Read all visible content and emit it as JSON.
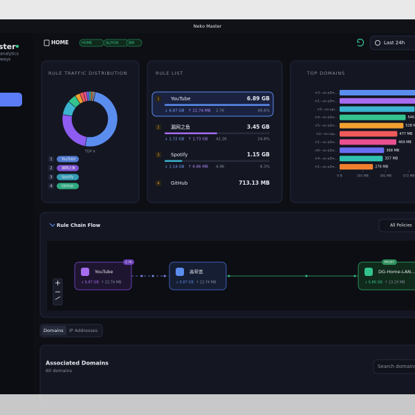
{
  "window_title": "Neko Master",
  "sidebar": {
    "brand": "ster",
    "subtitle_lines": [
      "analytics",
      "ways"
    ]
  },
  "header": {
    "backend": "HOME",
    "chips": [
      "HOME",
      "ALIYUN",
      "BW"
    ],
    "time_range": "Last 24h"
  },
  "rule_traffic": {
    "title": "RULE TRAFFIC DISTRIBUTION",
    "donut": {
      "values": [
        49.6,
        24.8,
        8.3,
        5.1,
        3,
        2.2,
        1.8,
        1.5,
        1.2,
        1,
        0.8,
        0.7
      ],
      "colors": [
        "#5b8def",
        "#8e5cf0",
        "#3bb4d0",
        "#34c38f",
        "#f0a030",
        "#ef5a5a",
        "#e8508f",
        "#6a6ef0",
        "#2fc0b0",
        "#f08030",
        "#c0c4cc",
        "#9aa0aa"
      ]
    },
    "top_label": "TOP 4",
    "legend": [
      {
        "rank": 1,
        "name": "YouTube"
      },
      {
        "rank": 2,
        "name": "漏网之鱼"
      },
      {
        "rank": 3,
        "name": "Spotify"
      },
      {
        "rank": 4,
        "name": "GitHub"
      }
    ]
  },
  "rule_list": {
    "title": "RULE LIST",
    "items": [
      {
        "rank": 1,
        "name": "YouTube",
        "total": "6.89 GB",
        "download": "↓ 6.87 GB",
        "upload": "↑ 22.74 MB",
        "connections": "2.7K",
        "share": 49.6,
        "share_label": "49.6%"
      },
      {
        "rank": 2,
        "name": "漏网之鱼",
        "total": "3.45 GB",
        "download": "↓ 1.72 GB",
        "upload": "↑ 1.73 GB",
        "connections": "42.2K",
        "share": 24.8,
        "share_label": "24.8%"
      },
      {
        "rank": 3,
        "name": "Spotify",
        "total": "1.15 GB",
        "download": "↓ 1.14 GB",
        "upload": "↑ 6.86 MB",
        "connections": "4.9K",
        "share": 8.3,
        "share_label": "8.3%"
      },
      {
        "rank": 4,
        "name": "GitHub",
        "total": "713.13 MB"
      }
    ]
  },
  "chart_data": {
    "type": "bar",
    "title": "TOP DOMAINS",
    "categories": [
      "rr3---sn-a5m...",
      "rr1---sn-a5m...",
      "rr5---sn-api...",
      "rr4---sn-a5m...",
      "rr5---sn-a5m...",
      "rr2---sn-cqu...",
      "rr1---sn-a5m...",
      "rr6---sn-a5m...",
      "rr4---sn-a5m...",
      "rr1---sn-a5m..."
    ],
    "values": [
      640,
      630,
      620,
      546,
      528,
      477,
      469,
      368,
      357,
      276
    ],
    "value_labels": [
      null,
      null,
      null,
      "546 MB",
      "528 MB",
      "477 MB",
      "469 MB",
      "368 MB",
      "357 MB",
      "276 MB"
    ],
    "colors": [
      "#5b8def",
      "#a66cf0",
      "#3bb4d0",
      "#34c38f",
      "#f0a030",
      "#ef5a5a",
      "#e8508f",
      "#6a6ef0",
      "#2fc0b0",
      "#f08030"
    ],
    "xlim": [
      0,
      572
    ],
    "xticks": [
      {
        "value": 0,
        "label": "0 B"
      },
      {
        "value": 191,
        "label": "191 MB"
      },
      {
        "value": 381,
        "label": "381 MB"
      },
      {
        "value": 572,
        "label": "572 MB"
      }
    ]
  },
  "flow": {
    "title": "Rule Chain Flow",
    "filter": "All Policies",
    "nodes": [
      {
        "label": "YouTube",
        "badge": "2.7K",
        "download": "↓ 6.87 GB",
        "upload": "↑ 22.74 MB"
      },
      {
        "label": "高带宽",
        "download": "↓ 6.87 GB",
        "upload": "↑ 22.74 MB"
      },
      {
        "label": "DG-Home-LAN...",
        "badge": "PROXY",
        "download": "↓ 6.86 GB",
        "upload": "↑ 23.29 MB"
      }
    ]
  },
  "tabs": [
    "Domains",
    "IP Addresses"
  ],
  "domains_panel": {
    "title": "Associated Domains",
    "count": "60 domains",
    "search_placeholder": "Search domains"
  }
}
